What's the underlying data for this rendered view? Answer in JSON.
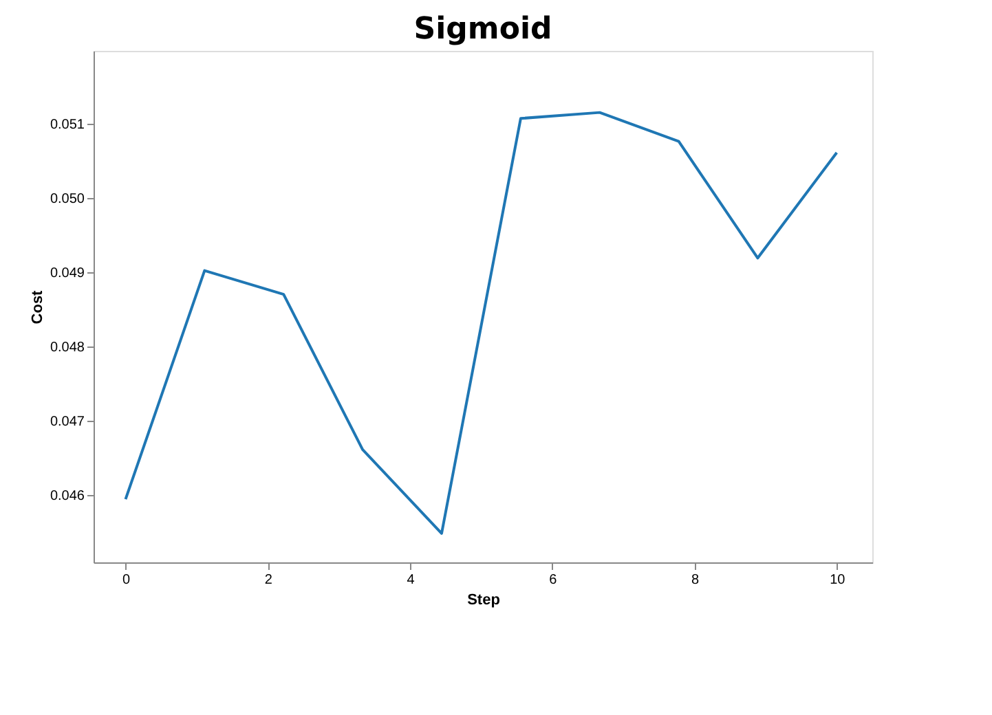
{
  "chart_data": {
    "type": "line",
    "title": "Sigmoid",
    "xlabel": "Step",
    "ylabel": "Cost",
    "x": [
      0,
      1.111,
      2.222,
      3.333,
      4.444,
      5.556,
      6.667,
      7.778,
      8.889,
      10
    ],
    "series": [
      {
        "color": "#1f77b4",
        "values": [
          0.04594,
          0.04902,
          0.0487,
          0.04661,
          0.04548,
          0.05107,
          0.05115,
          0.05076,
          0.04919,
          0.05061
        ]
      }
    ],
    "xlim": [
      -0.45,
      10.5
    ],
    "xticks": [
      0,
      2,
      4,
      6,
      8,
      10
    ],
    "ylim": [
      0.04509,
      0.05198
    ],
    "yticks": [
      0.046,
      0.047,
      0.048,
      0.049,
      {
        "value": 0.05,
        "label": "0.050"
      },
      0.051
    ],
    "grid": false,
    "marker": "none",
    "line_style": "solid"
  }
}
